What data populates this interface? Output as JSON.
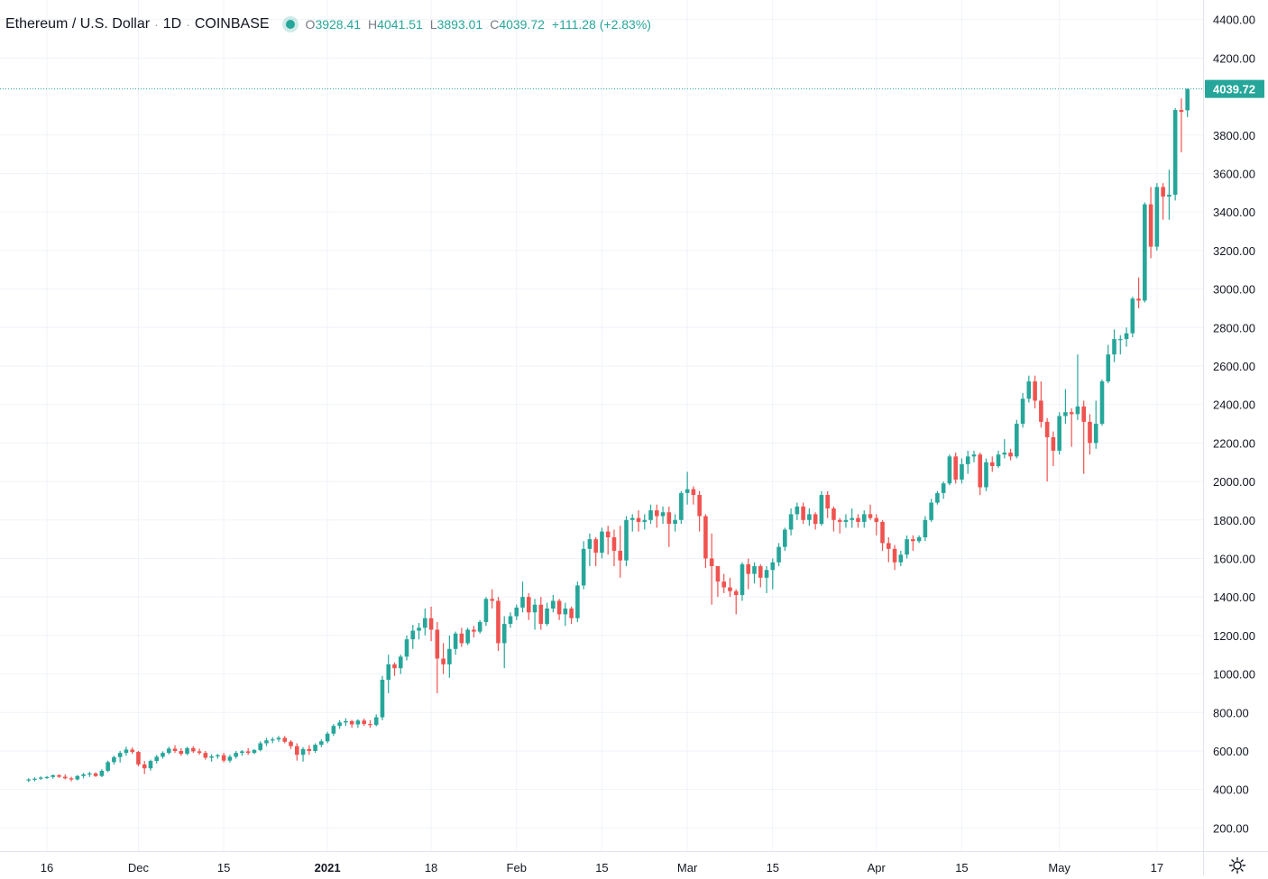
{
  "header": {
    "symbol": "Ethereum / U.S. Dollar",
    "interval": "1D",
    "exchange": "COINBASE",
    "open_label": "O",
    "open": "3928.41",
    "high_label": "H",
    "high": "4041.51",
    "low_label": "L",
    "low": "3893.01",
    "close_label": "C",
    "close": "4039.72",
    "change": "+111.28 (+2.83%)"
  },
  "colors": {
    "up": "#26a69a",
    "down": "#ef5350",
    "grid": "#f0f3fa",
    "axis_text": "#131722",
    "price_line": "#26a69a"
  },
  "icons": {
    "settings": "gear-icon",
    "live": "live-dot-icon"
  },
  "chart_data": {
    "type": "candlestick",
    "symbol": "Ethereum / U.S. Dollar",
    "interval": "1D",
    "exchange": "COINBASE",
    "start_date": "2020-11-13",
    "y_ticks": [
      "200.00",
      "400.00",
      "600.00",
      "800.00",
      "1000.00",
      "1200.00",
      "1400.00",
      "1600.00",
      "1800.00",
      "2000.00",
      "2200.00",
      "2400.00",
      "2600.00",
      "2800.00",
      "3000.00",
      "3200.00",
      "3400.00",
      "3600.00",
      "3800.00",
      "4200.00",
      "4400.00"
    ],
    "y_range": [
      80,
      4480
    ],
    "x_ticks": [
      {
        "date": "2020-11-16",
        "label": "16"
      },
      {
        "date": "2020-12-01",
        "label": "Dec"
      },
      {
        "date": "2020-12-15",
        "label": "15"
      },
      {
        "date": "2021-01-01",
        "label": "2021"
      },
      {
        "date": "2021-01-18",
        "label": "18"
      },
      {
        "date": "2021-02-01",
        "label": "Feb"
      },
      {
        "date": "2021-02-15",
        "label": "15"
      },
      {
        "date": "2021-03-01",
        "label": "Mar"
      },
      {
        "date": "2021-03-15",
        "label": "15"
      },
      {
        "date": "2021-04-01",
        "label": "Apr"
      },
      {
        "date": "2021-04-15",
        "label": "15"
      },
      {
        "date": "2021-05-01",
        "label": "May"
      },
      {
        "date": "2021-05-17",
        "label": "17"
      }
    ],
    "last_price": "4039.72",
    "grid": true,
    "candles": [
      [
        448,
        458,
        438,
        452
      ],
      [
        452,
        463,
        442,
        456
      ],
      [
        456,
        468,
        450,
        462
      ],
      [
        462,
        470,
        454,
        465
      ],
      [
        465,
        478,
        456,
        474
      ],
      [
        474,
        480,
        460,
        466
      ],
      [
        466,
        478,
        452,
        458
      ],
      [
        458,
        466,
        442,
        452
      ],
      [
        452,
        475,
        447,
        470
      ],
      [
        470,
        486,
        458,
        478
      ],
      [
        478,
        492,
        465,
        483
      ],
      [
        483,
        490,
        465,
        470
      ],
      [
        470,
        505,
        464,
        497
      ],
      [
        497,
        550,
        490,
        542
      ],
      [
        542,
        575,
        530,
        568
      ],
      [
        568,
        600,
        540,
        590
      ],
      [
        590,
        622,
        575,
        607
      ],
      [
        607,
        618,
        585,
        595
      ],
      [
        595,
        600,
        520,
        530
      ],
      [
        530,
        548,
        480,
        510
      ],
      [
        510,
        555,
        498,
        548
      ],
      [
        548,
        580,
        535,
        570
      ],
      [
        570,
        598,
        560,
        590
      ],
      [
        590,
        622,
        582,
        612
      ],
      [
        612,
        630,
        590,
        600
      ],
      [
        600,
        615,
        575,
        585
      ],
      [
        585,
        622,
        578,
        615
      ],
      [
        615,
        625,
        590,
        598
      ],
      [
        598,
        612,
        580,
        590
      ],
      [
        590,
        600,
        555,
        565
      ],
      [
        565,
        582,
        545,
        572
      ],
      [
        572,
        585,
        560,
        578
      ],
      [
        578,
        590,
        540,
        550
      ],
      [
        550,
        580,
        540,
        570
      ],
      [
        570,
        600,
        560,
        590
      ],
      [
        590,
        605,
        575,
        598
      ],
      [
        598,
        615,
        580,
        590
      ],
      [
        590,
        610,
        584,
        605
      ],
      [
        605,
        650,
        598,
        640
      ],
      [
        640,
        668,
        625,
        655
      ],
      [
        655,
        672,
        640,
        660
      ],
      [
        660,
        678,
        648,
        668
      ],
      [
        668,
        678,
        640,
        648
      ],
      [
        648,
        656,
        610,
        625
      ],
      [
        625,
        640,
        550,
        580
      ],
      [
        580,
        620,
        545,
        610
      ],
      [
        610,
        630,
        580,
        600
      ],
      [
        600,
        640,
        590,
        632
      ],
      [
        632,
        660,
        620,
        650
      ],
      [
        650,
        700,
        640,
        690
      ],
      [
        690,
        740,
        678,
        730
      ],
      [
        730,
        760,
        715,
        748
      ],
      [
        748,
        770,
        730,
        755
      ],
      [
        755,
        762,
        720,
        738
      ],
      [
        738,
        765,
        720,
        758
      ],
      [
        758,
        768,
        730,
        740
      ],
      [
        740,
        760,
        720,
        735
      ],
      [
        735,
        790,
        728,
        775
      ],
      [
        775,
        990,
        760,
        970
      ],
      [
        970,
        1100,
        900,
        1050
      ],
      [
        1050,
        1060,
        990,
        1030
      ],
      [
        1030,
        1100,
        1000,
        1090
      ],
      [
        1090,
        1200,
        1070,
        1180
      ],
      [
        1180,
        1255,
        1130,
        1225
      ],
      [
        1225,
        1265,
        1180,
        1240
      ],
      [
        1240,
        1340,
        1200,
        1290
      ],
      [
        1290,
        1350,
        1170,
        1230
      ],
      [
        1230,
        1270,
        900,
        1080
      ],
      [
        1080,
        1160,
        1000,
        1050
      ],
      [
        1050,
        1200,
        980,
        1130
      ],
      [
        1130,
        1220,
        1100,
        1210
      ],
      [
        1210,
        1240,
        1140,
        1160
      ],
      [
        1160,
        1240,
        1150,
        1230
      ],
      [
        1230,
        1250,
        1190,
        1220
      ],
      [
        1220,
        1280,
        1210,
        1270
      ],
      [
        1270,
        1400,
        1250,
        1390
      ],
      [
        1390,
        1440,
        1340,
        1380
      ],
      [
        1380,
        1400,
        1120,
        1160
      ],
      [
        1160,
        1300,
        1030,
        1260
      ],
      [
        1260,
        1320,
        1240,
        1300
      ],
      [
        1300,
        1360,
        1280,
        1345
      ],
      [
        1345,
        1480,
        1320,
        1400
      ],
      [
        1400,
        1420,
        1280,
        1320
      ],
      [
        1320,
        1390,
        1230,
        1360
      ],
      [
        1360,
        1400,
        1230,
        1260
      ],
      [
        1260,
        1370,
        1250,
        1340
      ],
      [
        1340,
        1410,
        1320,
        1380
      ],
      [
        1380,
        1390,
        1280,
        1310
      ],
      [
        1310,
        1370,
        1250,
        1340
      ],
      [
        1340,
        1350,
        1260,
        1290
      ],
      [
        1290,
        1480,
        1270,
        1460
      ],
      [
        1460,
        1690,
        1440,
        1650
      ],
      [
        1650,
        1730,
        1560,
        1700
      ],
      [
        1700,
        1710,
        1560,
        1630
      ],
      [
        1630,
        1760,
        1600,
        1740
      ],
      [
        1740,
        1770,
        1620,
        1710
      ],
      [
        1710,
        1750,
        1560,
        1640
      ],
      [
        1640,
        1770,
        1500,
        1590
      ],
      [
        1590,
        1820,
        1560,
        1800
      ],
      [
        1800,
        1830,
        1740,
        1810
      ],
      [
        1810,
        1850,
        1740,
        1790
      ],
      [
        1790,
        1830,
        1750,
        1800
      ],
      [
        1800,
        1880,
        1780,
        1850
      ],
      [
        1850,
        1880,
        1760,
        1820
      ],
      [
        1820,
        1870,
        1780,
        1840
      ],
      [
        1840,
        1870,
        1660,
        1780
      ],
      [
        1780,
        1830,
        1740,
        1800
      ],
      [
        1800,
        1950,
        1780,
        1940
      ],
      [
        1940,
        2050,
        1880,
        1960
      ],
      [
        1960,
        1975,
        1880,
        1930
      ],
      [
        1930,
        1950,
        1740,
        1820
      ],
      [
        1820,
        1830,
        1550,
        1600
      ],
      [
        1600,
        1730,
        1360,
        1560
      ],
      [
        1560,
        1560,
        1400,
        1480
      ],
      [
        1480,
        1520,
        1420,
        1450
      ],
      [
        1450,
        1500,
        1400,
        1430
      ],
      [
        1430,
        1440,
        1310,
        1410
      ],
      [
        1410,
        1580,
        1380,
        1570
      ],
      [
        1570,
        1600,
        1440,
        1520
      ],
      [
        1520,
        1580,
        1470,
        1560
      ],
      [
        1560,
        1570,
        1450,
        1500
      ],
      [
        1500,
        1560,
        1420,
        1540
      ],
      [
        1540,
        1600,
        1440,
        1580
      ],
      [
        1580,
        1680,
        1560,
        1660
      ],
      [
        1660,
        1760,
        1640,
        1750
      ],
      [
        1750,
        1860,
        1720,
        1830
      ],
      [
        1830,
        1890,
        1800,
        1870
      ],
      [
        1870,
        1890,
        1780,
        1800
      ],
      [
        1800,
        1860,
        1770,
        1830
      ],
      [
        1830,
        1840,
        1750,
        1780
      ],
      [
        1780,
        1950,
        1770,
        1930
      ],
      [
        1930,
        1950,
        1810,
        1860
      ],
      [
        1860,
        1870,
        1740,
        1800
      ],
      [
        1800,
        1810,
        1730,
        1790
      ],
      [
        1790,
        1830,
        1760,
        1800
      ],
      [
        1800,
        1860,
        1760,
        1810
      ],
      [
        1810,
        1830,
        1760,
        1790
      ],
      [
        1790,
        1850,
        1760,
        1830
      ],
      [
        1830,
        1880,
        1800,
        1810
      ],
      [
        1810,
        1830,
        1720,
        1790
      ],
      [
        1790,
        1800,
        1640,
        1680
      ],
      [
        1680,
        1710,
        1580,
        1650
      ],
      [
        1650,
        1670,
        1540,
        1580
      ],
      [
        1580,
        1640,
        1560,
        1620
      ],
      [
        1620,
        1720,
        1600,
        1700
      ],
      [
        1700,
        1720,
        1640,
        1690
      ],
      [
        1690,
        1720,
        1680,
        1710
      ],
      [
        1710,
        1820,
        1690,
        1800
      ],
      [
        1800,
        1910,
        1790,
        1890
      ],
      [
        1890,
        1950,
        1880,
        1940
      ],
      [
        1940,
        2000,
        1910,
        1990
      ],
      [
        1990,
        2140,
        1980,
        2130
      ],
      [
        2130,
        2150,
        1990,
        2010
      ],
      [
        2010,
        2120,
        1990,
        2090
      ],
      [
        2090,
        2160,
        2040,
        2130
      ],
      [
        2130,
        2160,
        2100,
        2140
      ],
      [
        2140,
        2150,
        1930,
        1970
      ],
      [
        1970,
        2120,
        1950,
        2100
      ],
      [
        2100,
        2130,
        2050,
        2080
      ],
      [
        2080,
        2160,
        2070,
        2140
      ],
      [
        2140,
        2220,
        2120,
        2150
      ],
      [
        2150,
        2170,
        2110,
        2130
      ],
      [
        2130,
        2320,
        2120,
        2300
      ],
      [
        2300,
        2460,
        2280,
        2430
      ],
      [
        2430,
        2550,
        2410,
        2520
      ],
      [
        2520,
        2550,
        2380,
        2420
      ],
      [
        2420,
        2520,
        2280,
        2310
      ],
      [
        2310,
        2330,
        2000,
        2230
      ],
      [
        2230,
        2260,
        2080,
        2160
      ],
      [
        2160,
        2360,
        2140,
        2340
      ],
      [
        2340,
        2480,
        2300,
        2360
      ],
      [
        2360,
        2380,
        2180,
        2350
      ],
      [
        2350,
        2660,
        2320,
        2390
      ],
      [
        2390,
        2420,
        2040,
        2310
      ],
      [
        2310,
        2350,
        2140,
        2200
      ],
      [
        2200,
        2420,
        2170,
        2300
      ],
      [
        2300,
        2530,
        2290,
        2520
      ],
      [
        2520,
        2710,
        2510,
        2660
      ],
      [
        2660,
        2790,
        2620,
        2740
      ],
      [
        2740,
        2760,
        2660,
        2740
      ],
      [
        2740,
        2800,
        2700,
        2770
      ],
      [
        2770,
        2960,
        2750,
        2950
      ],
      [
        2950,
        3060,
        2900,
        2940
      ],
      [
        2940,
        3450,
        2930,
        3440
      ],
      [
        3440,
        3530,
        3160,
        3220
      ],
      [
        3220,
        3550,
        3200,
        3530
      ],
      [
        3530,
        3550,
        3360,
        3480
      ],
      [
        3480,
        3620,
        3360,
        3490
      ],
      [
        3490,
        3940,
        3460,
        3930
      ],
      [
        3930,
        3990,
        3710,
        3920
      ],
      [
        3928.41,
        4041.51,
        3893.01,
        4039.72
      ]
    ]
  }
}
